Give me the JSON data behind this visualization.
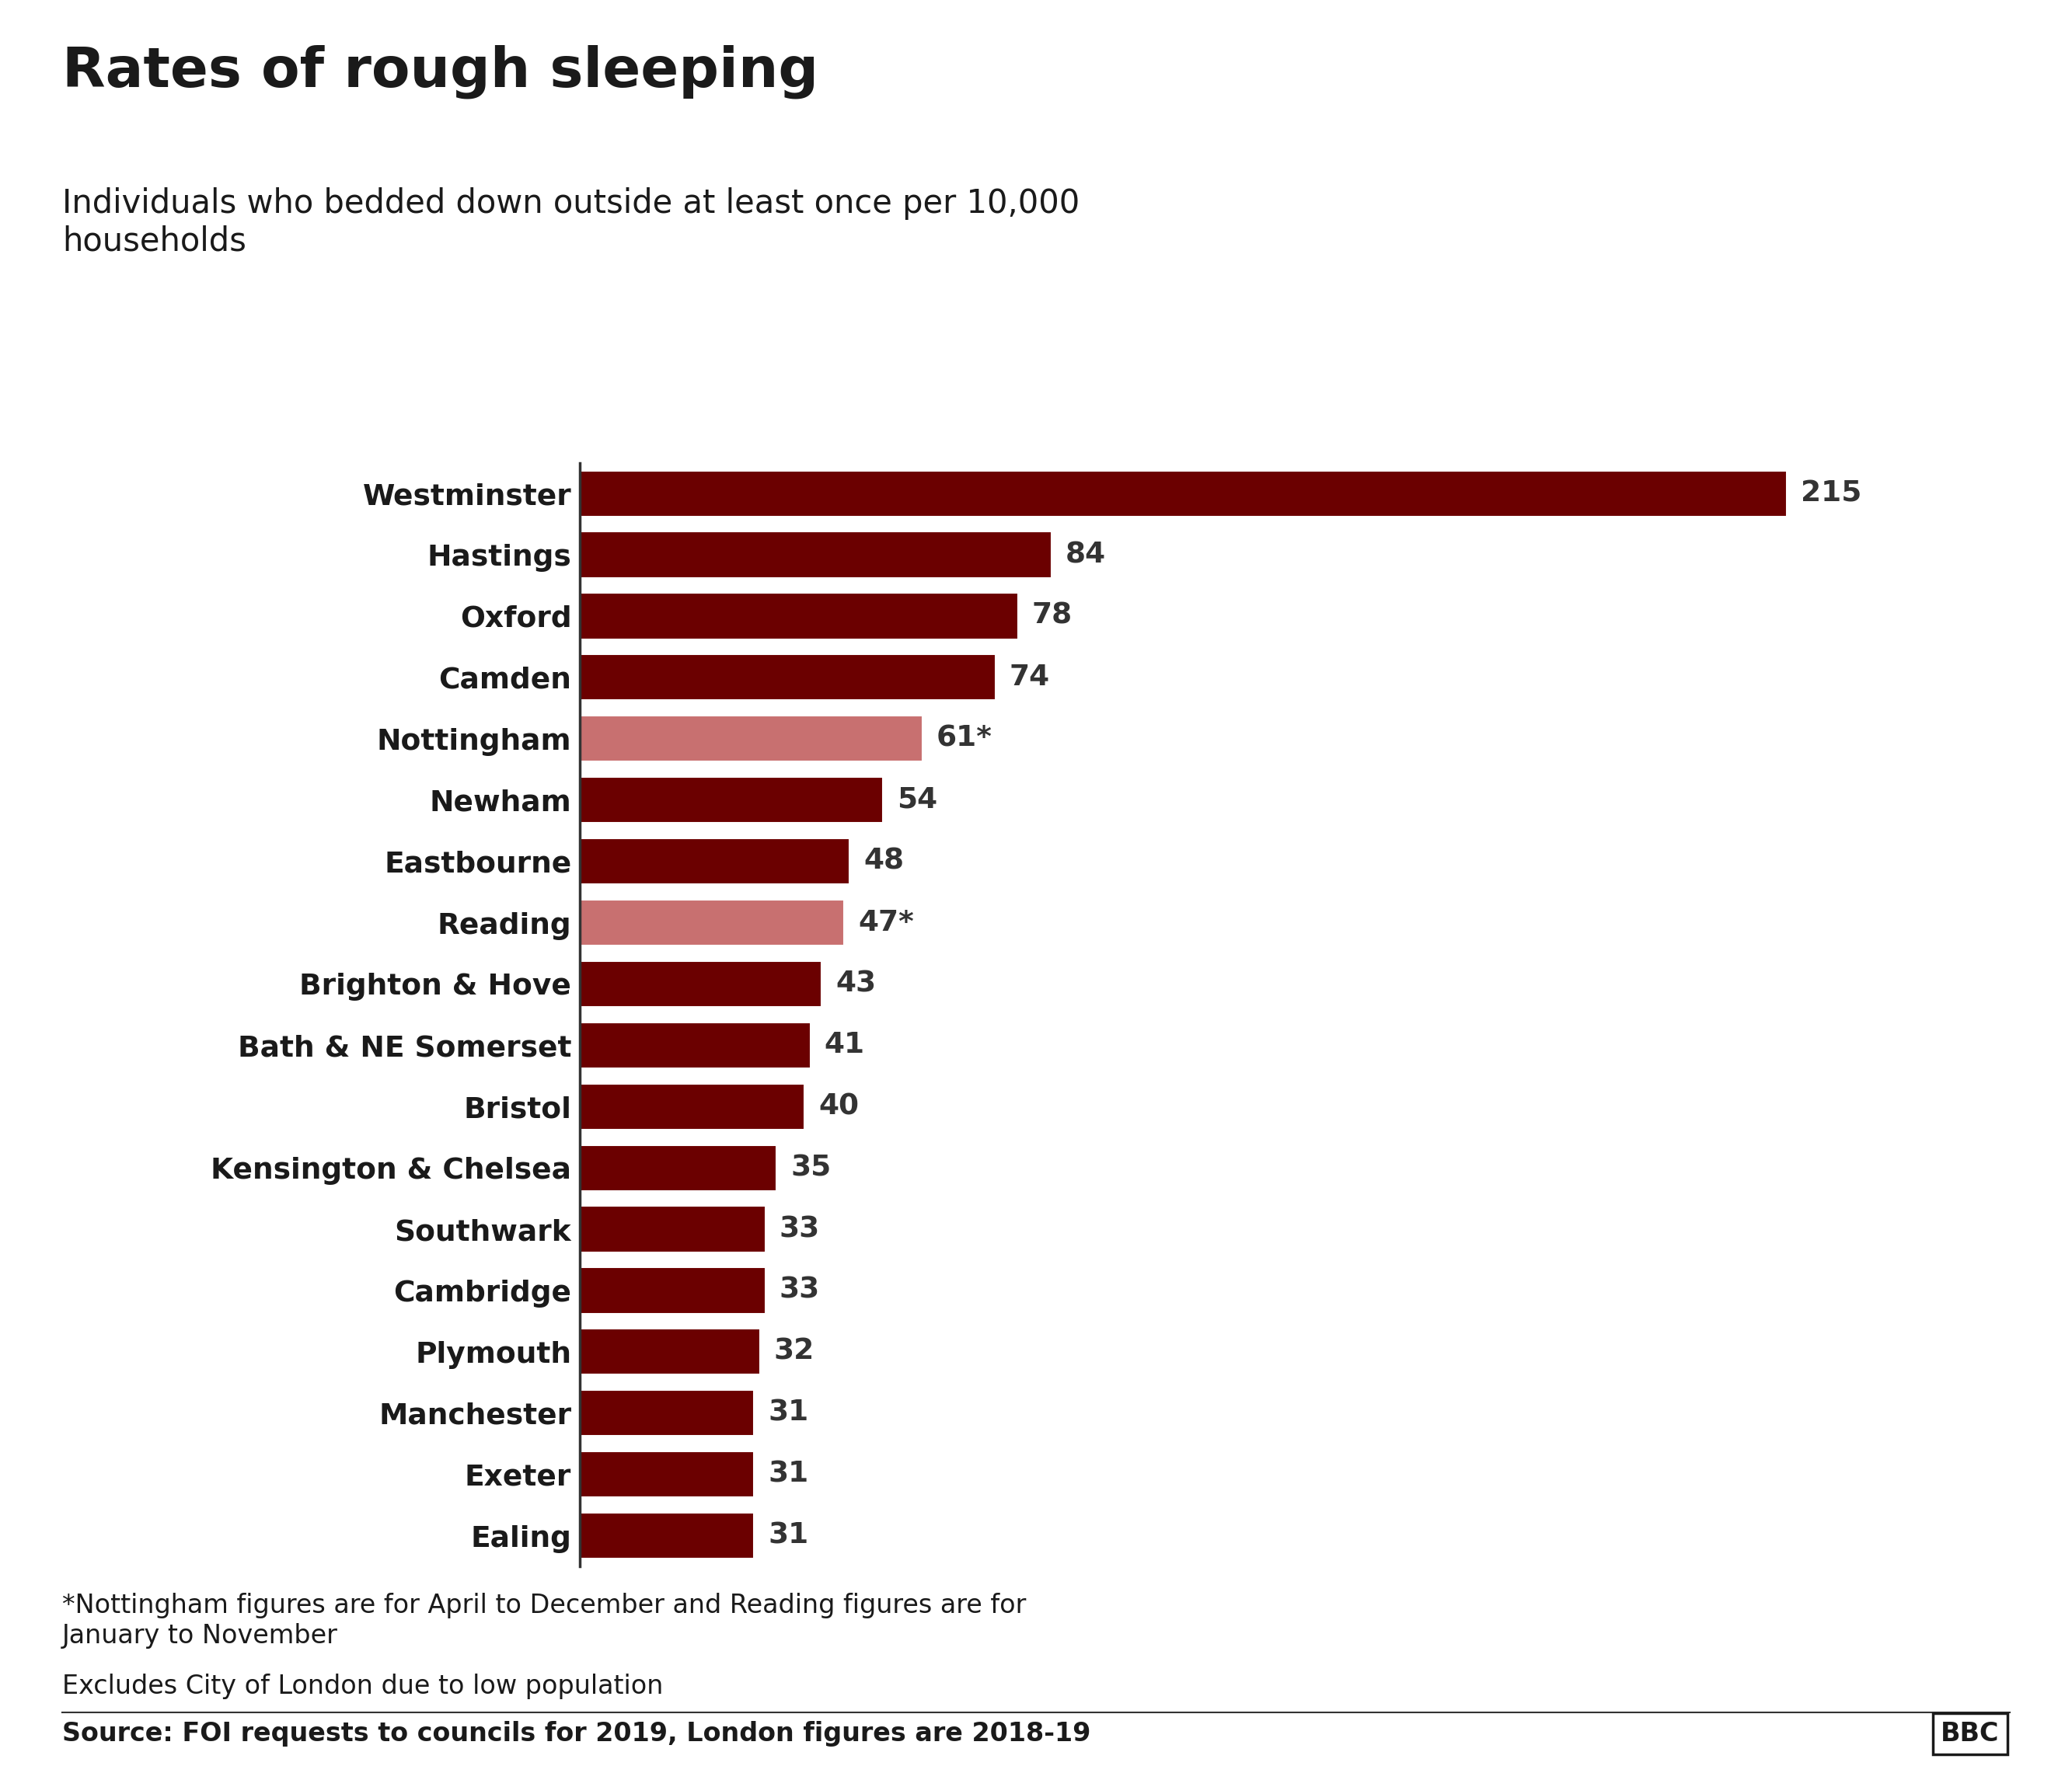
{
  "title": "Rates of rough sleeping",
  "subtitle": "Individuals who bedded down outside at least once per 10,000\nhouseholds",
  "categories": [
    "Westminster",
    "Hastings",
    "Oxford",
    "Camden",
    "Nottingham",
    "Newham",
    "Eastbourne",
    "Reading",
    "Brighton & Hove",
    "Bath & NE Somerset",
    "Bristol",
    "Kensington & Chelsea",
    "Southwark",
    "Cambridge",
    "Plymouth",
    "Manchester",
    "Exeter",
    "Ealing"
  ],
  "values": [
    215,
    84,
    78,
    74,
    61,
    54,
    48,
    47,
    43,
    41,
    40,
    35,
    33,
    33,
    32,
    31,
    31,
    31
  ],
  "labels": [
    "215",
    "84",
    "78",
    "74",
    "61*",
    "54",
    "48",
    "47*",
    "43",
    "41",
    "40",
    "35",
    "33",
    "33",
    "32",
    "31",
    "31",
    "31"
  ],
  "bar_colors": [
    "#6b0000",
    "#6b0000",
    "#6b0000",
    "#6b0000",
    "#c87070",
    "#6b0000",
    "#6b0000",
    "#c87070",
    "#6b0000",
    "#6b0000",
    "#6b0000",
    "#6b0000",
    "#6b0000",
    "#6b0000",
    "#6b0000",
    "#6b0000",
    "#6b0000",
    "#6b0000"
  ],
  "footnote1": "*Nottingham figures are for April to December and Reading figures are for\nJanuary to November",
  "footnote2": "Excludes City of London due to low population",
  "source": "Source: FOI requests to councils for 2019, London figures are 2018-19",
  "background_color": "#ffffff",
  "title_fontsize": 52,
  "subtitle_fontsize": 30,
  "label_fontsize": 27,
  "tick_fontsize": 27,
  "footnote_fontsize": 24,
  "source_fontsize": 24,
  "xlim": [
    0,
    240
  ]
}
